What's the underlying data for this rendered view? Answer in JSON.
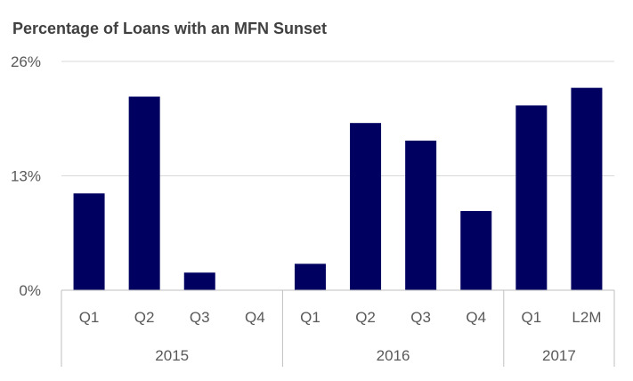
{
  "chart_data": {
    "type": "bar",
    "title": "Percentage of Loans with an MFN Sunset",
    "xlabel": "",
    "ylabel": "",
    "ylim": [
      0,
      26
    ],
    "yticks": [
      "0%",
      "13%",
      "26%"
    ],
    "ytick_values": [
      0,
      13,
      26
    ],
    "grid": true,
    "legend": "none",
    "categories": [
      "Q1",
      "Q2",
      "Q3",
      "Q4",
      "Q1",
      "Q2",
      "Q3",
      "Q4",
      "Q1",
      "L2M"
    ],
    "values": [
      11,
      22,
      2,
      0,
      3,
      19,
      17,
      9,
      21,
      23
    ],
    "groups": [
      {
        "label": "2015",
        "count": 4
      },
      {
        "label": "2016",
        "count": 4
      },
      {
        "label": "2017",
        "count": 2
      }
    ],
    "colors": {
      "bar": "#000060",
      "grid": "#d9d9d9",
      "axis": "#bfbfbf"
    }
  }
}
